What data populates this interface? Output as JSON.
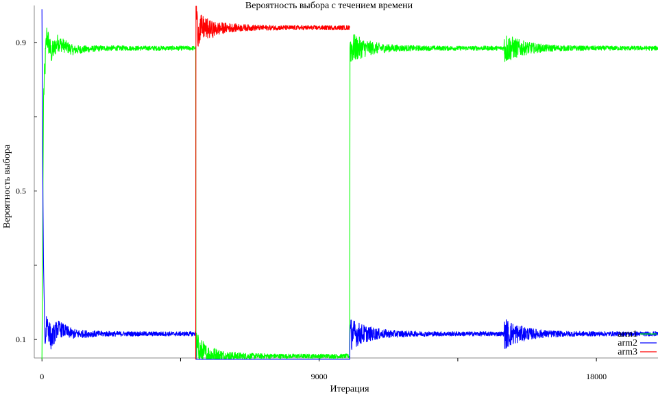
{
  "chart_data": {
    "type": "line",
    "title": "Вероятность выбора с течением времени",
    "xlabel": "Итерация",
    "ylabel": "Вероятность выбора",
    "xlim": [
      -250,
      20000
    ],
    "ylim": [
      0.05,
      1.0
    ],
    "x_ticks": [
      0,
      9000,
      18000
    ],
    "x_tick_labels": [
      "0",
      "9000",
      "18000"
    ],
    "x_minor_ticks": [
      4500,
      13500
    ],
    "y_ticks": [
      0.1,
      0.5,
      0.9
    ],
    "y_tick_labels": [
      "0.1",
      "0.5",
      "0.9"
    ],
    "y_minor_ticks": [
      0.3,
      0.7
    ],
    "grid": false,
    "legend_position": "bottom-right",
    "segments": [
      {
        "start": 0,
        "end": 5000,
        "levels": {
          "arm1": 0.885,
          "arm2": 0.115,
          "arm3": 0.0
        }
      },
      {
        "start": 5000,
        "end": 10000,
        "levels": {
          "arm1": 0.055,
          "arm2": 0.005,
          "arm3": 0.94
        }
      },
      {
        "start": 10000,
        "end": 20000,
        "levels": {
          "arm1": 0.885,
          "arm2": 0.115,
          "arm3": 0.0
        }
      }
    ],
    "series": [
      {
        "name": "arm1",
        "color": "#00ff00",
        "x": [
          0,
          50,
          150,
          300,
          500,
          1000,
          2000,
          3000,
          4000,
          4990,
          5000,
          5100,
          5300,
          6000,
          7000,
          8000,
          9000,
          9990,
          10000,
          11000,
          13000,
          15000,
          17000,
          18000,
          20000
        ],
        "y": [
          0.0,
          0.75,
          0.92,
          0.87,
          0.9,
          0.88,
          0.885,
          0.885,
          0.885,
          0.885,
          0.08,
          0.07,
          0.06,
          0.055,
          0.055,
          0.055,
          0.055,
          0.055,
          0.885,
          0.885,
          0.885,
          0.885,
          0.885,
          0.885,
          0.885
        ]
      },
      {
        "name": "arm2",
        "color": "#0000ff",
        "x": [
          0,
          20,
          50,
          100,
          150,
          300,
          500,
          1000,
          2000,
          3000,
          4000,
          4990,
          5000,
          5100,
          6000,
          7000,
          8000,
          9000,
          9990,
          10000,
          11000,
          13000,
          15000,
          17000,
          18000,
          20000
        ],
        "y": [
          0.99,
          0.6,
          0.3,
          0.09,
          0.15,
          0.1,
          0.13,
          0.115,
          0.115,
          0.115,
          0.115,
          0.115,
          0.02,
          0.005,
          0.005,
          0.005,
          0.005,
          0.005,
          0.005,
          0.115,
          0.115,
          0.115,
          0.115,
          0.115,
          0.115,
          0.115
        ]
      },
      {
        "name": "arm3",
        "color": "#ff0000",
        "x": [
          4990,
          5000,
          5050,
          5200,
          5500,
          6000,
          7000,
          8000,
          9000,
          9990
        ],
        "y": [
          0.0,
          1.0,
          0.93,
          0.94,
          0.935,
          0.94,
          0.94,
          0.94,
          0.94,
          0.94
        ]
      }
    ]
  }
}
